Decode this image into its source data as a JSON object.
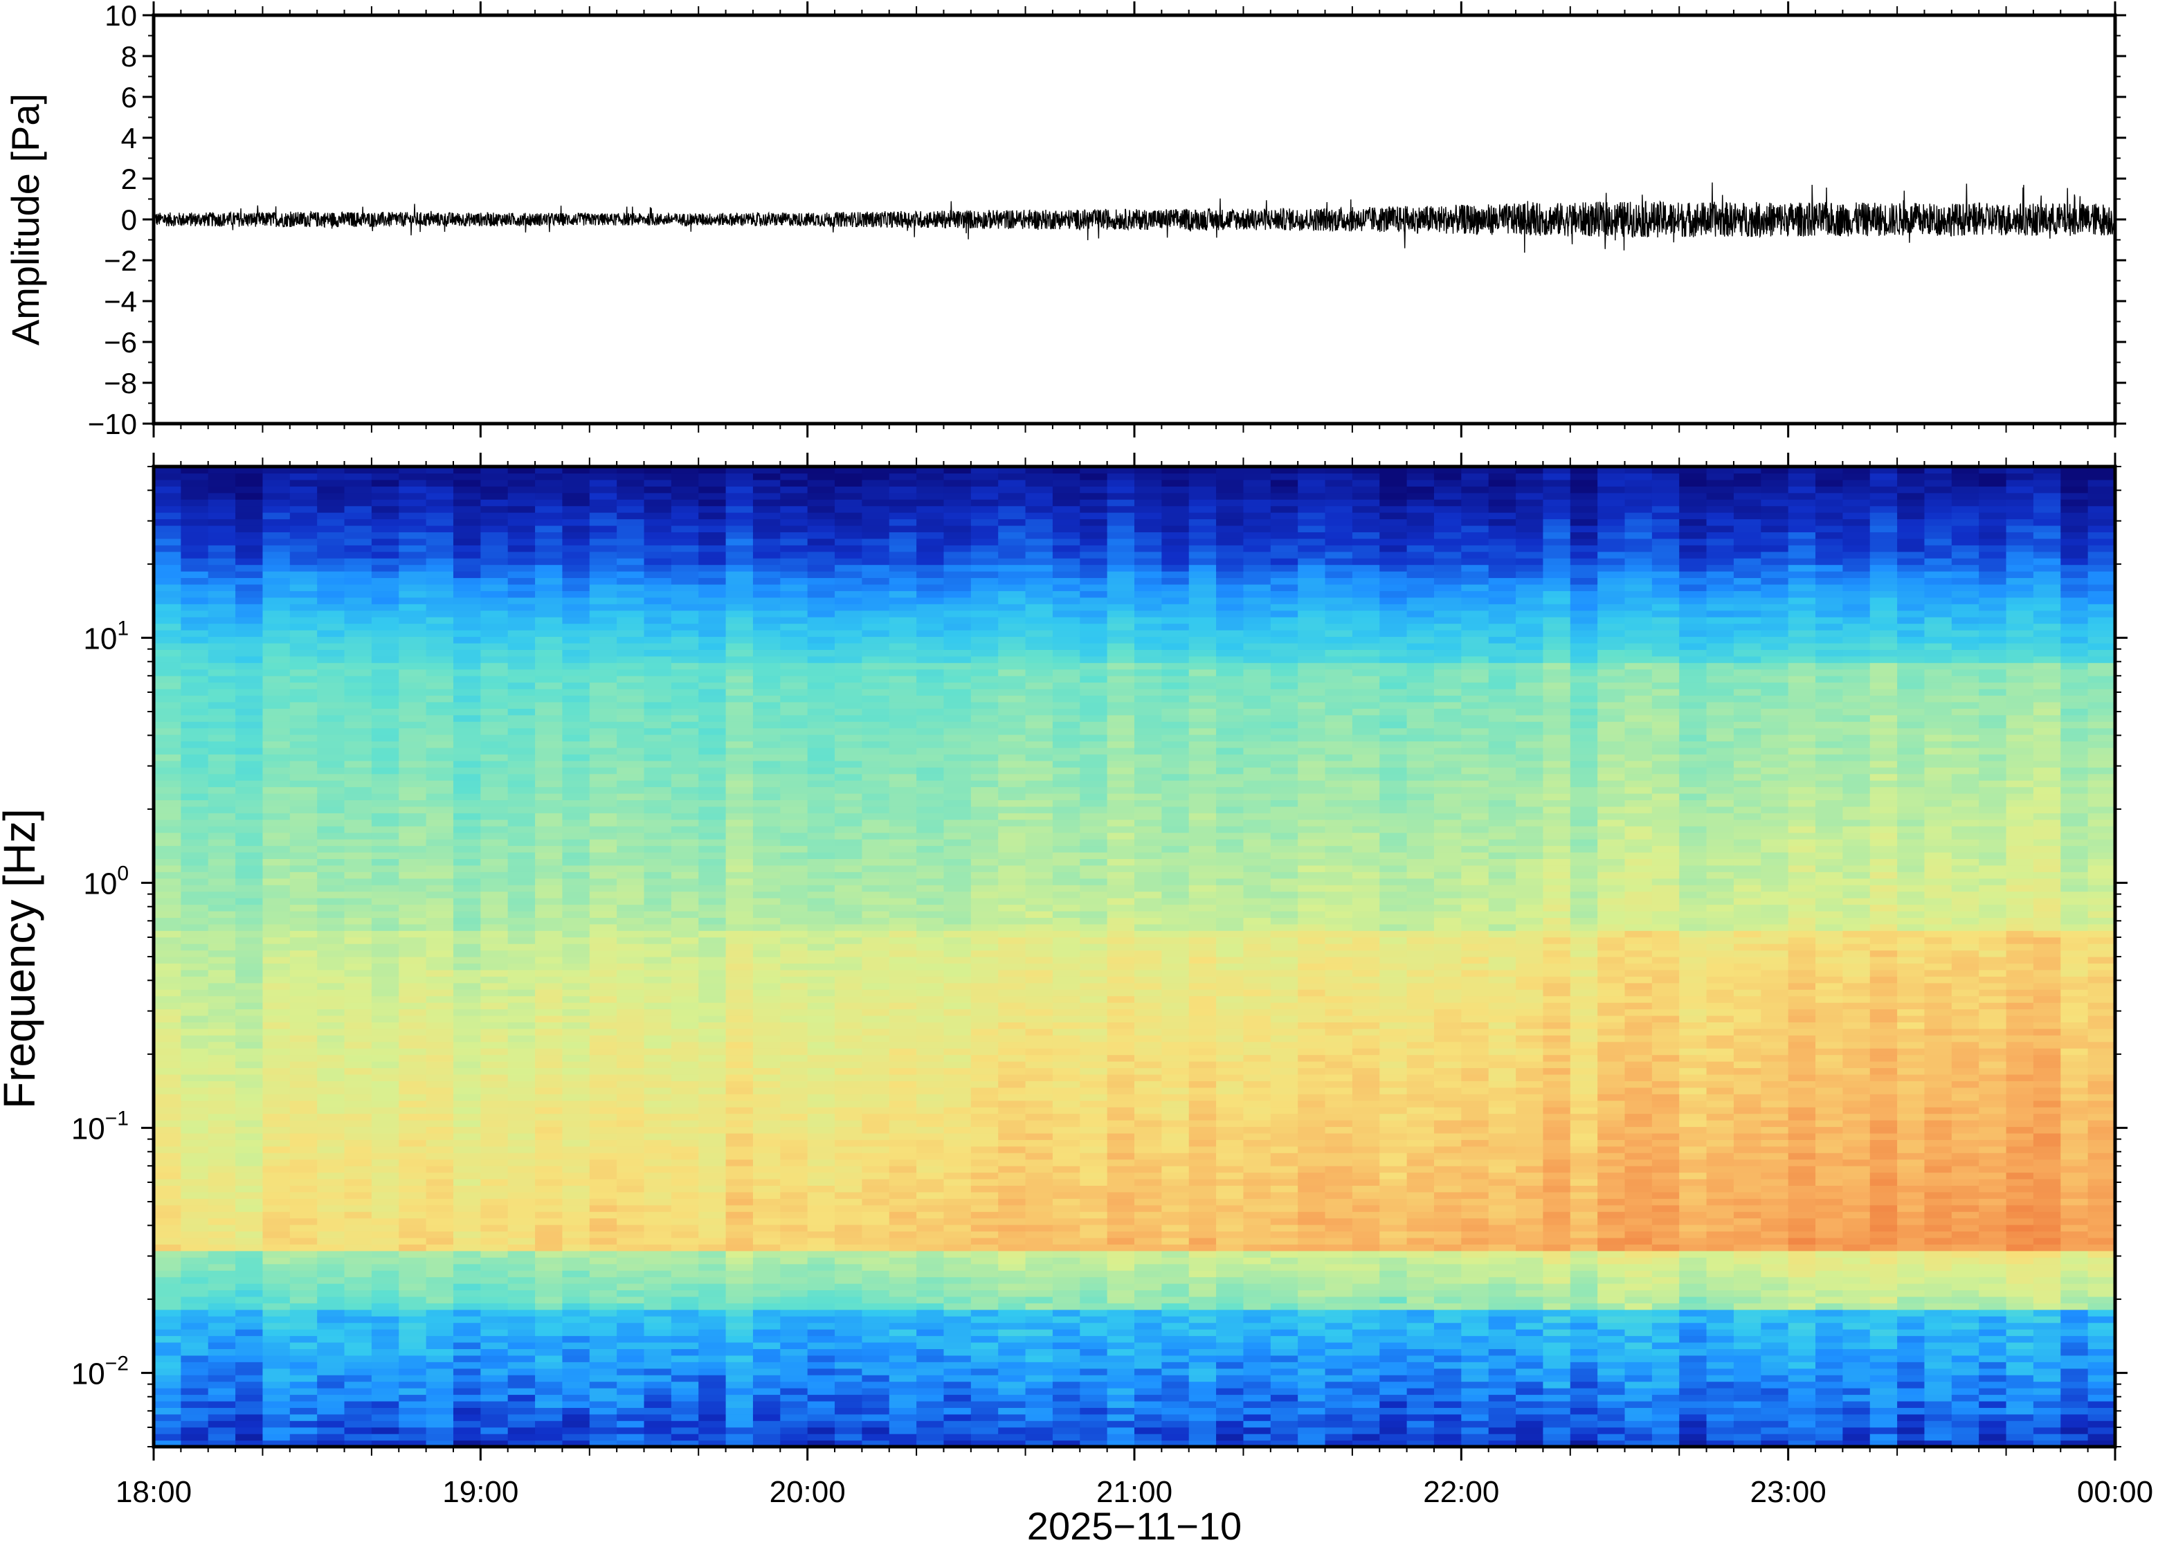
{
  "chart_data": [
    {
      "type": "line",
      "panel": "waveform",
      "ylabel": "Amplitude [Pa]",
      "ylim": [
        -10,
        10
      ],
      "yticks": [
        "10",
        "8",
        "6",
        "4",
        "2",
        "0",
        "−2",
        "−4",
        "−6",
        "−8",
        "−10"
      ],
      "ytick_values": [
        10,
        8,
        6,
        4,
        2,
        0,
        -2,
        -4,
        -6,
        -8,
        -10
      ],
      "xlim": [
        "2025-11-10T18:00",
        "2025-11-11T00:00"
      ],
      "series": [
        {
          "envelope_x": [
            "18:00",
            "18:30",
            "19:00",
            "19:30",
            "20:00",
            "20:30",
            "21:00",
            "21:30",
            "22:00",
            "22:30",
            "23:00",
            "23:30",
            "00:00"
          ],
          "envelope_y": [
            0.4,
            0.45,
            0.4,
            0.35,
            0.4,
            0.55,
            0.6,
            0.65,
            0.85,
            1.05,
            1.0,
            0.95,
            0.95
          ],
          "color": "#000000"
        }
      ]
    },
    {
      "type": "heatmap",
      "panel": "spectrogram",
      "ylabel": "Frequency [Hz]",
      "yscale": "log",
      "ylim": [
        0.005,
        50
      ],
      "yticks": [
        {
          "base": "10",
          "exp": "1",
          "value": 10
        },
        {
          "base": "10",
          "exp": "0",
          "value": 1
        },
        {
          "base": "10",
          "exp": "−1",
          "value": 0.1
        },
        {
          "base": "10",
          "exp": "−2",
          "value": 0.01
        }
      ],
      "colormap": [
        "#0a0a7a",
        "#1030c8",
        "#1e90ff",
        "#33c8f0",
        "#5fe0d0",
        "#9de8b0",
        "#d8f090",
        "#f7e07a",
        "#f8b060",
        "#f08040"
      ],
      "xlabel": "2025−11−10",
      "xticks": [
        "18:00",
        "19:00",
        "20:00",
        "21:00",
        "22:00",
        "23:00",
        "00:00"
      ],
      "xlim": [
        "2025-11-10T18:00",
        "2025-11-11T00:00"
      ]
    }
  ]
}
